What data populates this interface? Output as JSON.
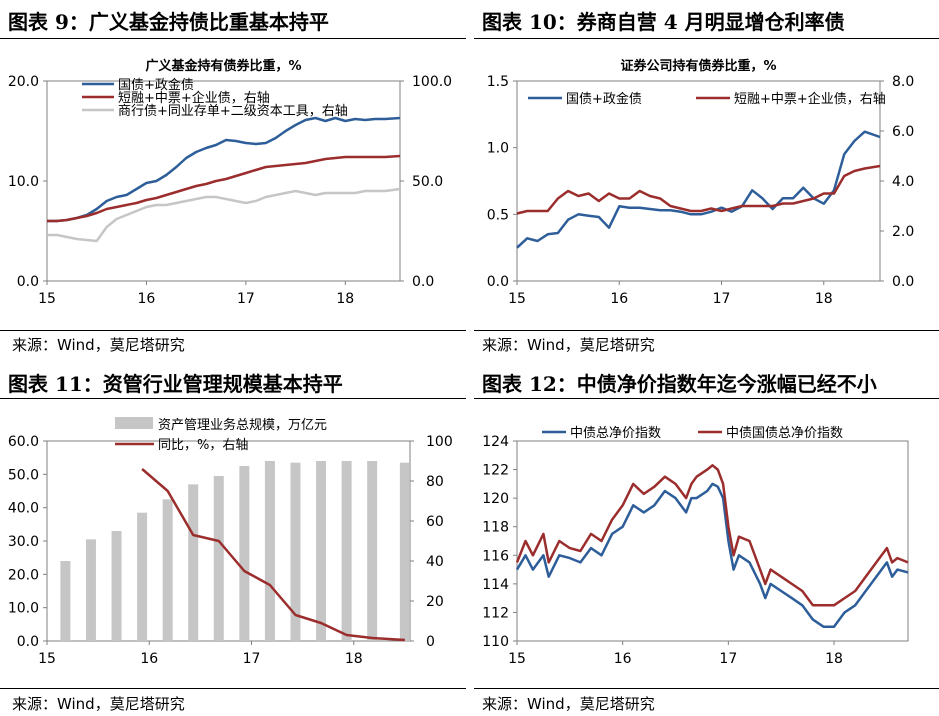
{
  "panels": [
    {
      "title": "图表 9：广义基金持债比重基本持平",
      "source": "来源：Wind，莫尼塔研究"
    },
    {
      "title": "图表 10：券商自营 4 月明显增仓利率债",
      "source": "来源：Wind，莫尼塔研究"
    },
    {
      "title": "图表 11：资管行业管理规模基本持平",
      "source": "来源：Wind，莫尼塔研究"
    },
    {
      "title": "图表 12：中债净价指数年迄今涨幅已经不小",
      "source": "来源：Wind，莫尼塔研究"
    }
  ],
  "chart_data": [
    {
      "type": "line",
      "title": "广义基金持有债券比重，%",
      "x_ticks": [
        "15",
        "16",
        "17",
        "18"
      ],
      "x_range": [
        2015.0,
        2018.55
      ],
      "ylim_left": [
        0,
        20
      ],
      "yticks_left": [
        "0.0",
        "10.0",
        "20.0"
      ],
      "ylim_right": [
        0,
        100
      ],
      "yticks_right": [
        "0.0",
        "50.0",
        "100.0"
      ],
      "legend_position": "top-left",
      "series": [
        {
          "name": "国债+政金债",
          "axis": "left",
          "color": "#2e5e9a",
          "x": [
            2015.0,
            2015.1,
            2015.2,
            2015.3,
            2015.4,
            2015.5,
            2015.6,
            2015.7,
            2015.8,
            2015.9,
            2016.0,
            2016.1,
            2016.2,
            2016.3,
            2016.4,
            2016.5,
            2016.6,
            2016.7,
            2016.8,
            2016.9,
            2017.0,
            2017.1,
            2017.2,
            2017.3,
            2017.4,
            2017.5,
            2017.6,
            2017.7,
            2017.8,
            2017.9,
            2018.0,
            2018.1,
            2018.2,
            2018.3,
            2018.4,
            2018.55
          ],
          "y": [
            6.0,
            6.0,
            6.1,
            6.3,
            6.6,
            7.2,
            8.0,
            8.4,
            8.6,
            9.2,
            9.8,
            10.0,
            10.6,
            11.4,
            12.3,
            12.9,
            13.3,
            13.6,
            14.1,
            14.0,
            13.8,
            13.7,
            13.8,
            14.3,
            15.0,
            15.6,
            16.1,
            16.3,
            16.0,
            16.3,
            16.0,
            16.2,
            16.1,
            16.2,
            16.2,
            16.3
          ]
        },
        {
          "name": "短融+中票+企业债，右轴",
          "axis": "right",
          "color": "#9b2d2d",
          "x": [
            2015.0,
            2015.1,
            2015.2,
            2015.3,
            2015.4,
            2015.5,
            2015.6,
            2015.7,
            2015.8,
            2015.9,
            2016.0,
            2016.1,
            2016.2,
            2016.3,
            2016.4,
            2016.5,
            2016.6,
            2016.7,
            2016.8,
            2016.9,
            2017.0,
            2017.1,
            2017.2,
            2017.3,
            2017.4,
            2017.5,
            2017.6,
            2017.7,
            2017.8,
            2017.9,
            2018.0,
            2018.1,
            2018.2,
            2018.3,
            2018.4,
            2018.55
          ],
          "y": [
            30,
            30,
            30.5,
            31.5,
            32.5,
            34,
            36,
            37,
            38,
            39,
            40.5,
            41.5,
            43,
            44.5,
            46,
            47.5,
            48.5,
            50,
            51,
            52.5,
            54,
            55.5,
            57,
            57.5,
            58,
            58.5,
            59,
            60,
            61,
            61.5,
            62,
            62,
            62,
            62,
            62,
            62.5
          ]
        },
        {
          "name": "商行债+同业存单+二级资本工具，右轴",
          "axis": "right",
          "color": "#c6c6c6",
          "x": [
            2015.0,
            2015.1,
            2015.2,
            2015.3,
            2015.4,
            2015.5,
            2015.6,
            2015.7,
            2015.8,
            2015.9,
            2016.0,
            2016.1,
            2016.2,
            2016.3,
            2016.4,
            2016.5,
            2016.6,
            2016.7,
            2016.8,
            2016.9,
            2017.0,
            2017.1,
            2017.2,
            2017.3,
            2017.4,
            2017.5,
            2017.6,
            2017.7,
            2017.8,
            2017.9,
            2018.0,
            2018.1,
            2018.2,
            2018.3,
            2018.4,
            2018.55
          ],
          "y": [
            23,
            23,
            22,
            21,
            20.5,
            20,
            27,
            31,
            33,
            35,
            37,
            38,
            38,
            39,
            40,
            41,
            42,
            42,
            41,
            40,
            39,
            40,
            42,
            43,
            44,
            45,
            44,
            43,
            44,
            44,
            44,
            44,
            45,
            45,
            45,
            46
          ]
        }
      ]
    },
    {
      "type": "line",
      "title": "证券公司持有债券比重，%",
      "x_ticks": [
        "15",
        "16",
        "17",
        "18"
      ],
      "x_range": [
        2015.0,
        2018.55
      ],
      "ylim_left": [
        0,
        1.5
      ],
      "yticks_left": [
        "0.0",
        "0.5",
        "1.0",
        "1.5"
      ],
      "ylim_right": [
        0,
        8
      ],
      "yticks_right": [
        "0.0",
        "2.0",
        "4.0",
        "6.0",
        "8.0"
      ],
      "legend_position": "top",
      "series": [
        {
          "name": "国债+政金债",
          "axis": "left",
          "color": "#2e5e9a",
          "x": [
            2015.0,
            2015.1,
            2015.2,
            2015.3,
            2015.4,
            2015.5,
            2015.6,
            2015.7,
            2015.8,
            2015.9,
            2016.0,
            2016.1,
            2016.2,
            2016.3,
            2016.4,
            2016.5,
            2016.6,
            2016.7,
            2016.8,
            2016.9,
            2017.0,
            2017.1,
            2017.2,
            2017.3,
            2017.4,
            2017.5,
            2017.6,
            2017.7,
            2017.8,
            2017.9,
            2018.0,
            2018.1,
            2018.2,
            2018.3,
            2018.4,
            2018.55
          ],
          "y": [
            0.25,
            0.32,
            0.3,
            0.35,
            0.36,
            0.46,
            0.5,
            0.49,
            0.48,
            0.4,
            0.56,
            0.55,
            0.55,
            0.54,
            0.53,
            0.53,
            0.52,
            0.5,
            0.5,
            0.52,
            0.55,
            0.52,
            0.56,
            0.68,
            0.62,
            0.54,
            0.62,
            0.62,
            0.7,
            0.62,
            0.58,
            0.68,
            0.95,
            1.05,
            1.12,
            1.08
          ]
        },
        {
          "name": "短融+中票+企业债，右轴",
          "axis": "right",
          "color": "#9b2d2d",
          "x": [
            2015.0,
            2015.1,
            2015.2,
            2015.3,
            2015.4,
            2015.5,
            2015.6,
            2015.7,
            2015.8,
            2015.9,
            2016.0,
            2016.1,
            2016.2,
            2016.3,
            2016.4,
            2016.5,
            2016.6,
            2016.7,
            2016.8,
            2016.9,
            2017.0,
            2017.1,
            2017.2,
            2017.3,
            2017.4,
            2017.5,
            2017.6,
            2017.7,
            2017.8,
            2017.9,
            2018.0,
            2018.1,
            2018.2,
            2018.3,
            2018.4,
            2018.55
          ],
          "y": [
            2.7,
            2.8,
            2.8,
            2.8,
            3.3,
            3.6,
            3.4,
            3.5,
            3.2,
            3.5,
            3.3,
            3.3,
            3.6,
            3.4,
            3.3,
            3.0,
            2.9,
            2.8,
            2.8,
            2.9,
            2.8,
            2.9,
            3.0,
            3.0,
            3.0,
            3.0,
            3.1,
            3.1,
            3.2,
            3.3,
            3.5,
            3.5,
            4.2,
            4.4,
            4.5,
            4.6
          ]
        }
      ]
    },
    {
      "type": "bar",
      "title": "",
      "x_ticks": [
        "15",
        "16",
        "17",
        "18"
      ],
      "x_range": [
        2015.0,
        2018.55
      ],
      "ylim_left": [
        0,
        60
      ],
      "yticks_left": [
        "0.0",
        "10.0",
        "20.0",
        "30.0",
        "40.0",
        "50.0",
        "60.0"
      ],
      "ylim_right": [
        0,
        100
      ],
      "yticks_right": [
        "0",
        "20",
        "40",
        "60",
        "80",
        "100"
      ],
      "legend_position": "top",
      "series": [
        {
          "name": "资产管理业务总规模，万亿元",
          "axis": "left",
          "kind": "bar",
          "color": "#c6c6c6",
          "x": [
            2015.18,
            2015.43,
            2015.68,
            2015.93,
            2016.18,
            2016.43,
            2016.68,
            2016.93,
            2017.18,
            2017.43,
            2017.68,
            2017.93,
            2018.18,
            2018.5
          ],
          "y": [
            24,
            30.5,
            33,
            38.5,
            42.5,
            47,
            49.5,
            52.5,
            54,
            53.5,
            54,
            54,
            54,
            53.5
          ]
        },
        {
          "name": "同比，%，右轴",
          "axis": "right",
          "kind": "line",
          "color": "#9b2d2d",
          "x": [
            2015.93,
            2016.18,
            2016.43,
            2016.68,
            2016.93,
            2017.18,
            2017.43,
            2017.68,
            2017.93,
            2018.18,
            2018.5
          ],
          "y": [
            86,
            75,
            53,
            50,
            35,
            28,
            13,
            9,
            3,
            1.5,
            0.5
          ]
        }
      ]
    },
    {
      "type": "line",
      "title": "",
      "x_ticks": [
        "15",
        "16",
        "17",
        "18"
      ],
      "x_range": [
        2015.0,
        2018.7
      ],
      "ylim_left": [
        110,
        124
      ],
      "yticks_left": [
        "110",
        "112",
        "114",
        "116",
        "118",
        "120",
        "122",
        "124"
      ],
      "legend_position": "top",
      "series": [
        {
          "name": "中债总净价指数",
          "axis": "left",
          "color": "#2e5e9a",
          "x": [
            2015.0,
            2015.08,
            2015.15,
            2015.25,
            2015.3,
            2015.4,
            2015.5,
            2015.6,
            2015.7,
            2015.8,
            2015.9,
            2016.0,
            2016.1,
            2016.2,
            2016.3,
            2016.4,
            2016.5,
            2016.6,
            2016.65,
            2016.7,
            2016.8,
            2016.85,
            2016.9,
            2016.95,
            2017.0,
            2017.05,
            2017.1,
            2017.2,
            2017.3,
            2017.35,
            2017.4,
            2017.5,
            2017.6,
            2017.7,
            2017.8,
            2017.9,
            2018.0,
            2018.1,
            2018.2,
            2018.3,
            2018.4,
            2018.5,
            2018.55,
            2018.6,
            2018.7
          ],
          "y": [
            115,
            116,
            115,
            116,
            114.5,
            116,
            115.8,
            115.5,
            116.5,
            116,
            117.5,
            118,
            119.5,
            119,
            119.5,
            120.5,
            120,
            119,
            120,
            120,
            120.5,
            121,
            120.8,
            120,
            117,
            115,
            116,
            115.5,
            114,
            113,
            114,
            113.5,
            113,
            112.5,
            111.5,
            111,
            111,
            112,
            112.5,
            113.5,
            114.5,
            115.5,
            114.5,
            115,
            114.8
          ]
        },
        {
          "name": "中债国债总净价指数",
          "axis": "left",
          "color": "#9b2d2d",
          "x": [
            2015.0,
            2015.08,
            2015.15,
            2015.25,
            2015.3,
            2015.4,
            2015.5,
            2015.6,
            2015.7,
            2015.8,
            2015.9,
            2016.0,
            2016.1,
            2016.2,
            2016.3,
            2016.4,
            2016.5,
            2016.6,
            2016.65,
            2016.7,
            2016.8,
            2016.85,
            2016.9,
            2016.95,
            2017.0,
            2017.05,
            2017.1,
            2017.2,
            2017.3,
            2017.35,
            2017.4,
            2017.5,
            2017.6,
            2017.7,
            2017.8,
            2017.9,
            2018.0,
            2018.1,
            2018.2,
            2018.3,
            2018.4,
            2018.5,
            2018.55,
            2018.6,
            2018.7
          ],
          "y": [
            115.5,
            117,
            116,
            117.5,
            115.5,
            117,
            116.5,
            116.3,
            117.5,
            117,
            118.5,
            119.5,
            121,
            120.3,
            120.8,
            121.5,
            121,
            120,
            121,
            121.5,
            122,
            122.3,
            122,
            121,
            118,
            116,
            117.3,
            117,
            115,
            114,
            115,
            114.5,
            114,
            113.5,
            112.5,
            112.5,
            112.5,
            113,
            113.5,
            114.5,
            115.5,
            116.5,
            115.5,
            115.8,
            115.5
          ]
        }
      ]
    }
  ]
}
